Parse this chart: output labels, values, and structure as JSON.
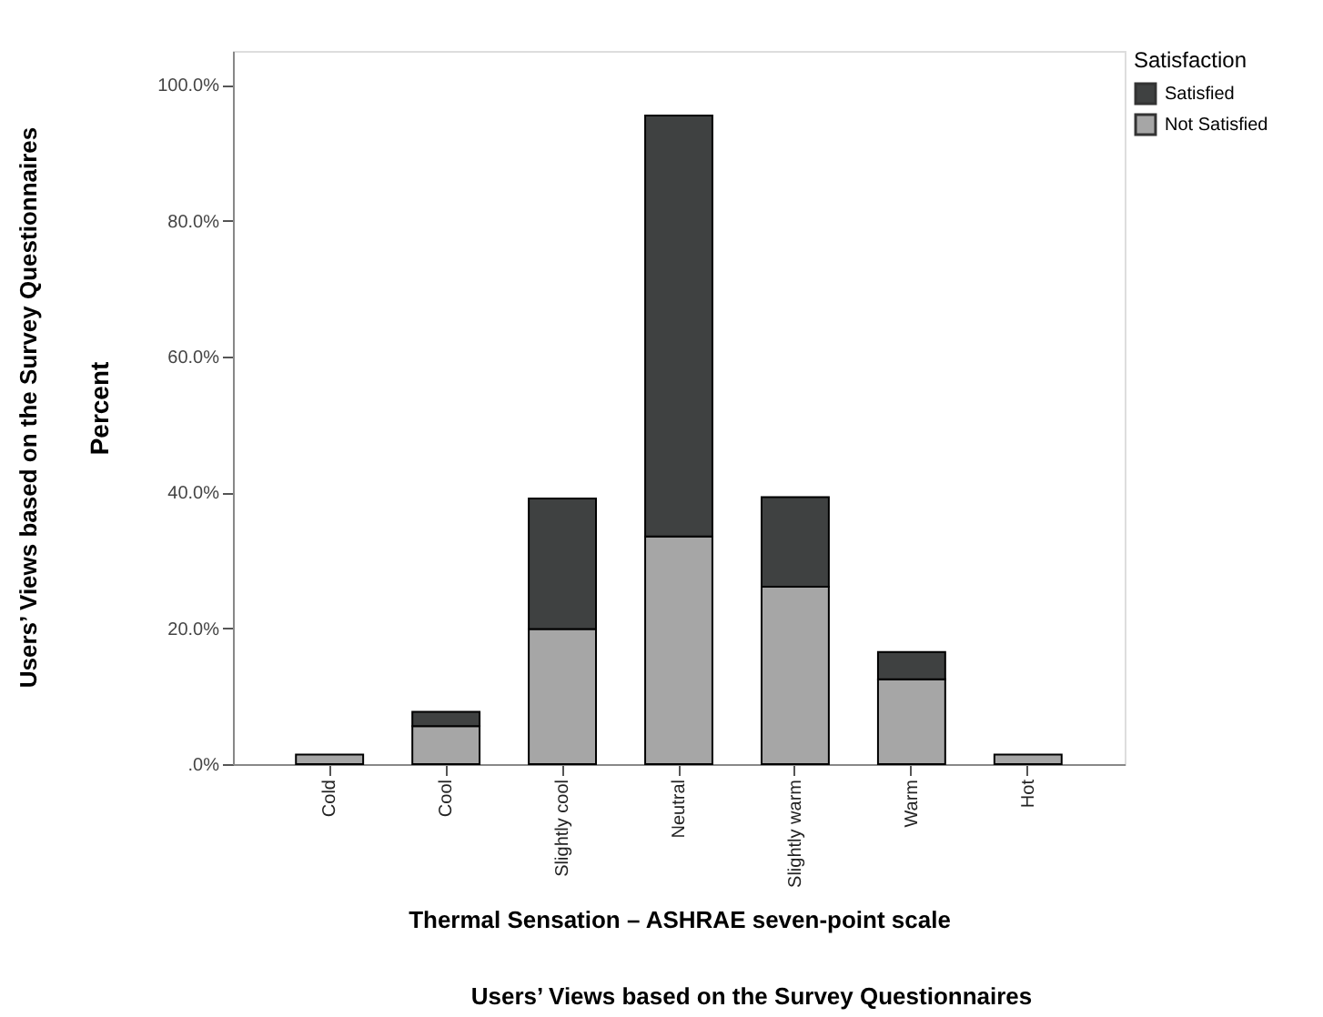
{
  "chart_data": {
    "type": "bar",
    "stacked": true,
    "categories": [
      "Cold",
      "Cool",
      "Slightly cool",
      "Neutral",
      "Slightly warm",
      "Warm",
      "Hot"
    ],
    "series": [
      {
        "name": "Not Satisfied",
        "color": "#a6a6a6",
        "values": [
          1.4,
          5.6,
          19.9,
          33.5,
          26.1,
          12.5,
          1.4
        ]
      },
      {
        "name": "Satisfied",
        "color": "#3f4141",
        "values": [
          null,
          2.1,
          19.2,
          62.0,
          13.2,
          4.0,
          null
        ]
      }
    ],
    "ylabel": "Percent",
    "xlabel": "Thermal Sensation – ASHRAE seven-point scale",
    "legend_title": "Satisfaction",
    "ylim": [
      0,
      105
    ],
    "yticks": [
      {
        "value": 0,
        "label": ".0%"
      },
      {
        "value": 20,
        "label": "20.0%"
      },
      {
        "value": 40,
        "label": "40.0%"
      },
      {
        "value": 60,
        "label": "60.0%"
      },
      {
        "value": 80,
        "label": "80.0%"
      },
      {
        "value": 100,
        "label": "100.0%"
      }
    ],
    "legend": "top right",
    "grid": false,
    "annotations": [
      "Users’ Views based on the Survey Questionnaires",
      "Users’ Views based on the Survey Questionnaires"
    ]
  }
}
